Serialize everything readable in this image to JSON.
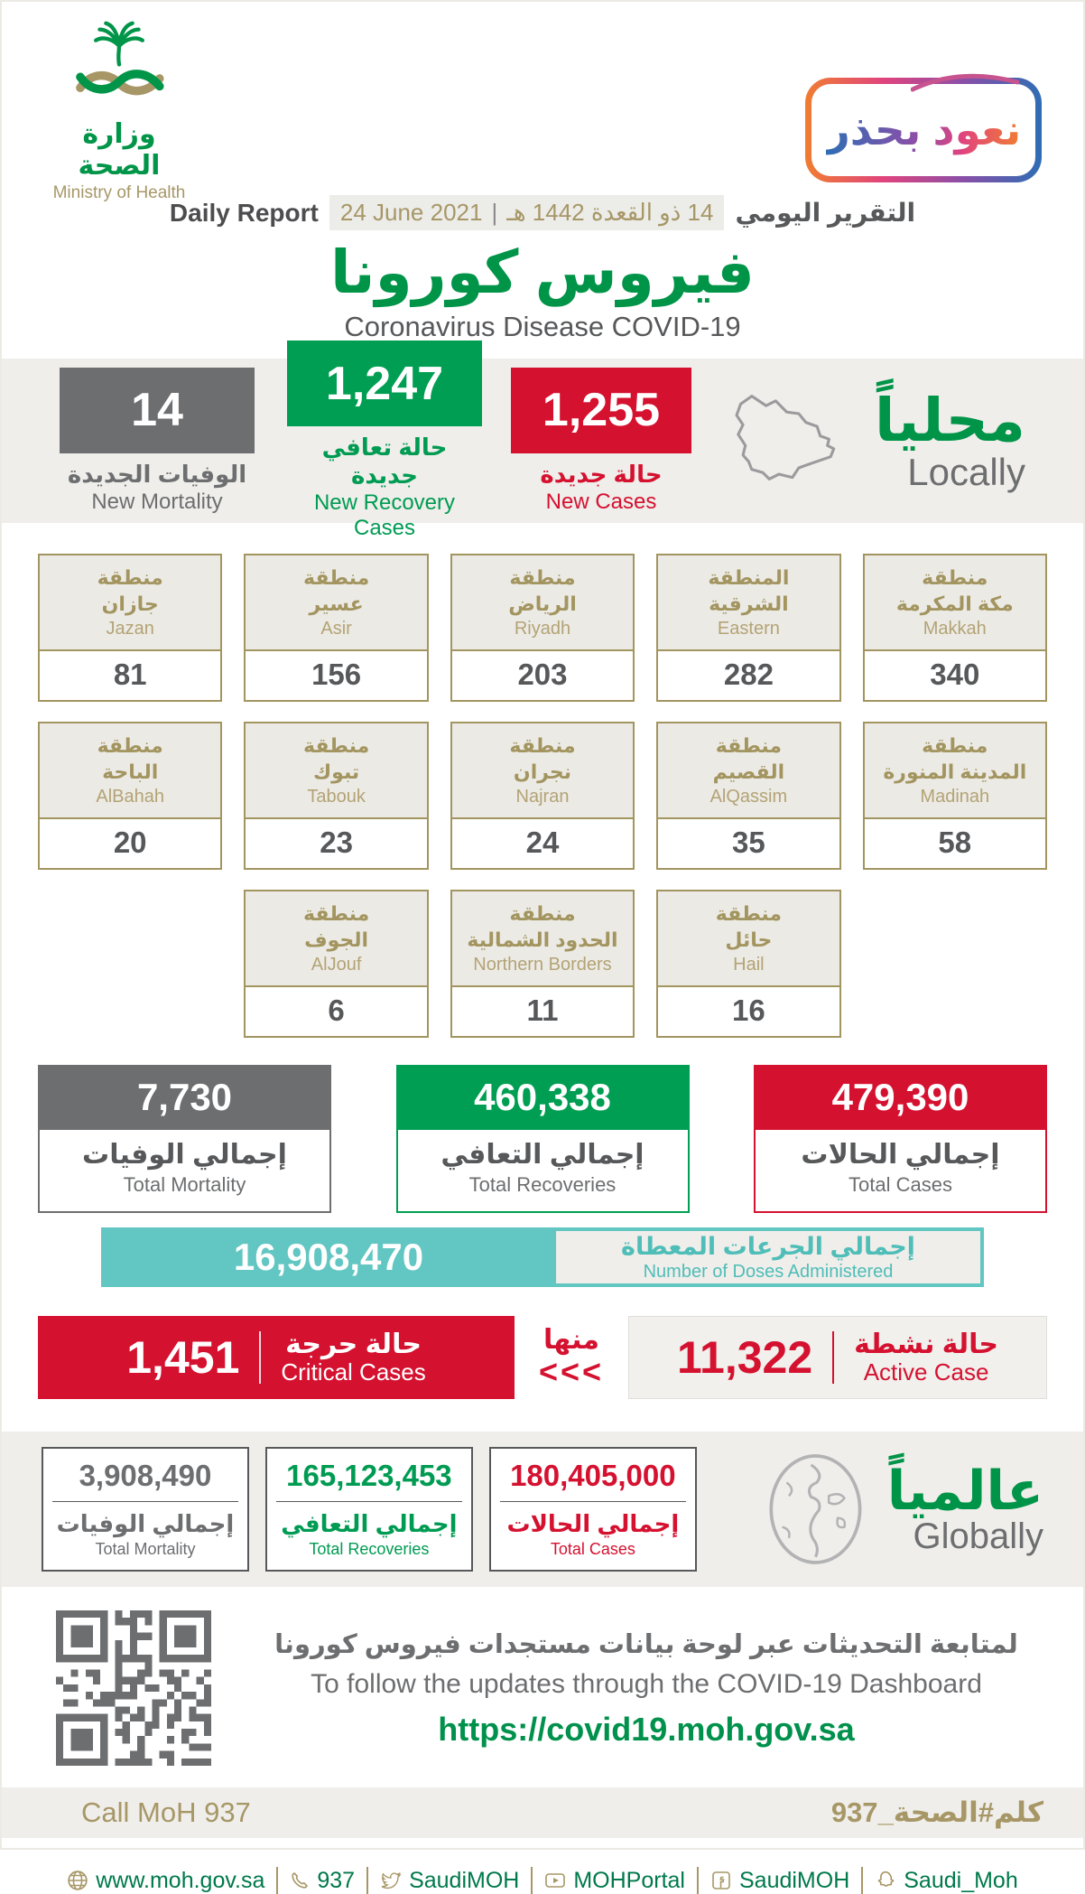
{
  "colors": {
    "green": "#009448",
    "green_box": "#009E52",
    "red": "#D51130",
    "gray": "#6D6E70",
    "gold": "#A79767",
    "teal": "#62C6C2",
    "band": "#EFEEEA"
  },
  "header": {
    "logo_ar": "وزارة الصحة",
    "logo_en": "Ministry of Health",
    "badge": "نعود بحذر",
    "daily_report_en": "Daily Report",
    "date_gregorian": "24 June 2021",
    "date_pipe": "|",
    "date_hijri": "14 ذو القعدة 1442 هـ",
    "daily_report_ar": "التقرير اليومي",
    "title_ar": "فيروس كورونا",
    "title_en": "Coronavirus Disease COVID-19"
  },
  "locally": {
    "heading_ar": "محلياً",
    "heading_en": "Locally",
    "new_mortality": {
      "value": "14",
      "ar": "الوفيات الجديدة",
      "en": "New Mortality"
    },
    "new_recoveries": {
      "value": "1,247",
      "ar": "حالة تعافي جديدة",
      "en": "New Recovery Cases"
    },
    "new_cases": {
      "value": "1,255",
      "ar": "حالة جديدة",
      "en": "New Cases"
    }
  },
  "regions": [
    {
      "ar1": "منطقة",
      "ar2": "جازان",
      "en": "Jazan",
      "value": "81"
    },
    {
      "ar1": "منطقة",
      "ar2": "عسير",
      "en": "Asir",
      "value": "156"
    },
    {
      "ar1": "منطقة",
      "ar2": "الرياض",
      "en": "Riyadh",
      "value": "203"
    },
    {
      "ar1": "المنطقة",
      "ar2": "الشرقية",
      "en": "Eastern",
      "value": "282"
    },
    {
      "ar1": "منطقة",
      "ar2": "مكة المكرمة",
      "en": "Makkah",
      "value": "340"
    },
    {
      "ar1": "منطقة",
      "ar2": "الباحة",
      "en": "AlBahah",
      "value": "20"
    },
    {
      "ar1": "منطقة",
      "ar2": "تبوك",
      "en": "Tabouk",
      "value": "23"
    },
    {
      "ar1": "منطقة",
      "ar2": "نجران",
      "en": "Najran",
      "value": "24"
    },
    {
      "ar1": "منطقة",
      "ar2": "القصيم",
      "en": "AlQassim",
      "value": "35"
    },
    {
      "ar1": "منطقة",
      "ar2": "المدينة المنورة",
      "en": "Madinah",
      "value": "58"
    },
    {
      "ar1": "منطقة",
      "ar2": "الجوف",
      "en": "AlJouf",
      "value": "6"
    },
    {
      "ar1": "منطقة",
      "ar2": "الحدود الشمالية",
      "en": "Northern Borders",
      "value": "11"
    },
    {
      "ar1": "منطقة",
      "ar2": "حائل",
      "en": "Hail",
      "value": "16"
    }
  ],
  "totals": {
    "mortality": {
      "value": "7,730",
      "ar": "إجمالي الوفيات",
      "en": "Total Mortality"
    },
    "recoveries": {
      "value": "460,338",
      "ar": "إجمالي التعافي",
      "en": "Total Recoveries"
    },
    "cases": {
      "value": "479,390",
      "ar": "إجمالي الحالات",
      "en": "Total Cases"
    }
  },
  "doses": {
    "value": "16,908,470",
    "ar": "إجمالي الجرعات المعطاة",
    "en": "Number of Doses Administered"
  },
  "critical": {
    "value": "1,451",
    "ar": "حالة حرجة",
    "en": "Critical Cases"
  },
  "of_which": "منها",
  "chevrons": "<<<",
  "active": {
    "value": "11,322",
    "ar": "حالة نشطة",
    "en": "Active Case"
  },
  "globally": {
    "heading_ar": "عالمياً",
    "heading_en": "Globally",
    "mortality": {
      "value": "3,908,490",
      "ar": "إجمالي الوفيات",
      "en": "Total Mortality"
    },
    "recoveries": {
      "value": "165,123,453",
      "ar": "إجمالي التعافي",
      "en": "Total Recoveries"
    },
    "cases": {
      "value": "180,405,000",
      "ar": "إجمالي الحالات",
      "en": "Total Cases"
    }
  },
  "dashboard": {
    "ar": "لمتابعة التحديثات عبر لوحة بيانات مستجدات فيروس كورونا",
    "en": "To follow the updates through the COVID-19 Dashboard",
    "url": "https://covid19.moh.gov.sa"
  },
  "footer": {
    "call": "Call MoH 937",
    "hashtag": "كلم#الصحة_937",
    "links": [
      {
        "icon": "globe-icon",
        "text": "www.moh.gov.sa"
      },
      {
        "icon": "phone-icon",
        "text": "937"
      },
      {
        "icon": "twitter-icon",
        "text": "SaudiMOH"
      },
      {
        "icon": "youtube-icon",
        "text": "MOHPortal"
      },
      {
        "icon": "facebook-icon",
        "text": "SaudiMOH"
      },
      {
        "icon": "snapchat-icon",
        "text": "Saudi_Moh"
      }
    ]
  }
}
